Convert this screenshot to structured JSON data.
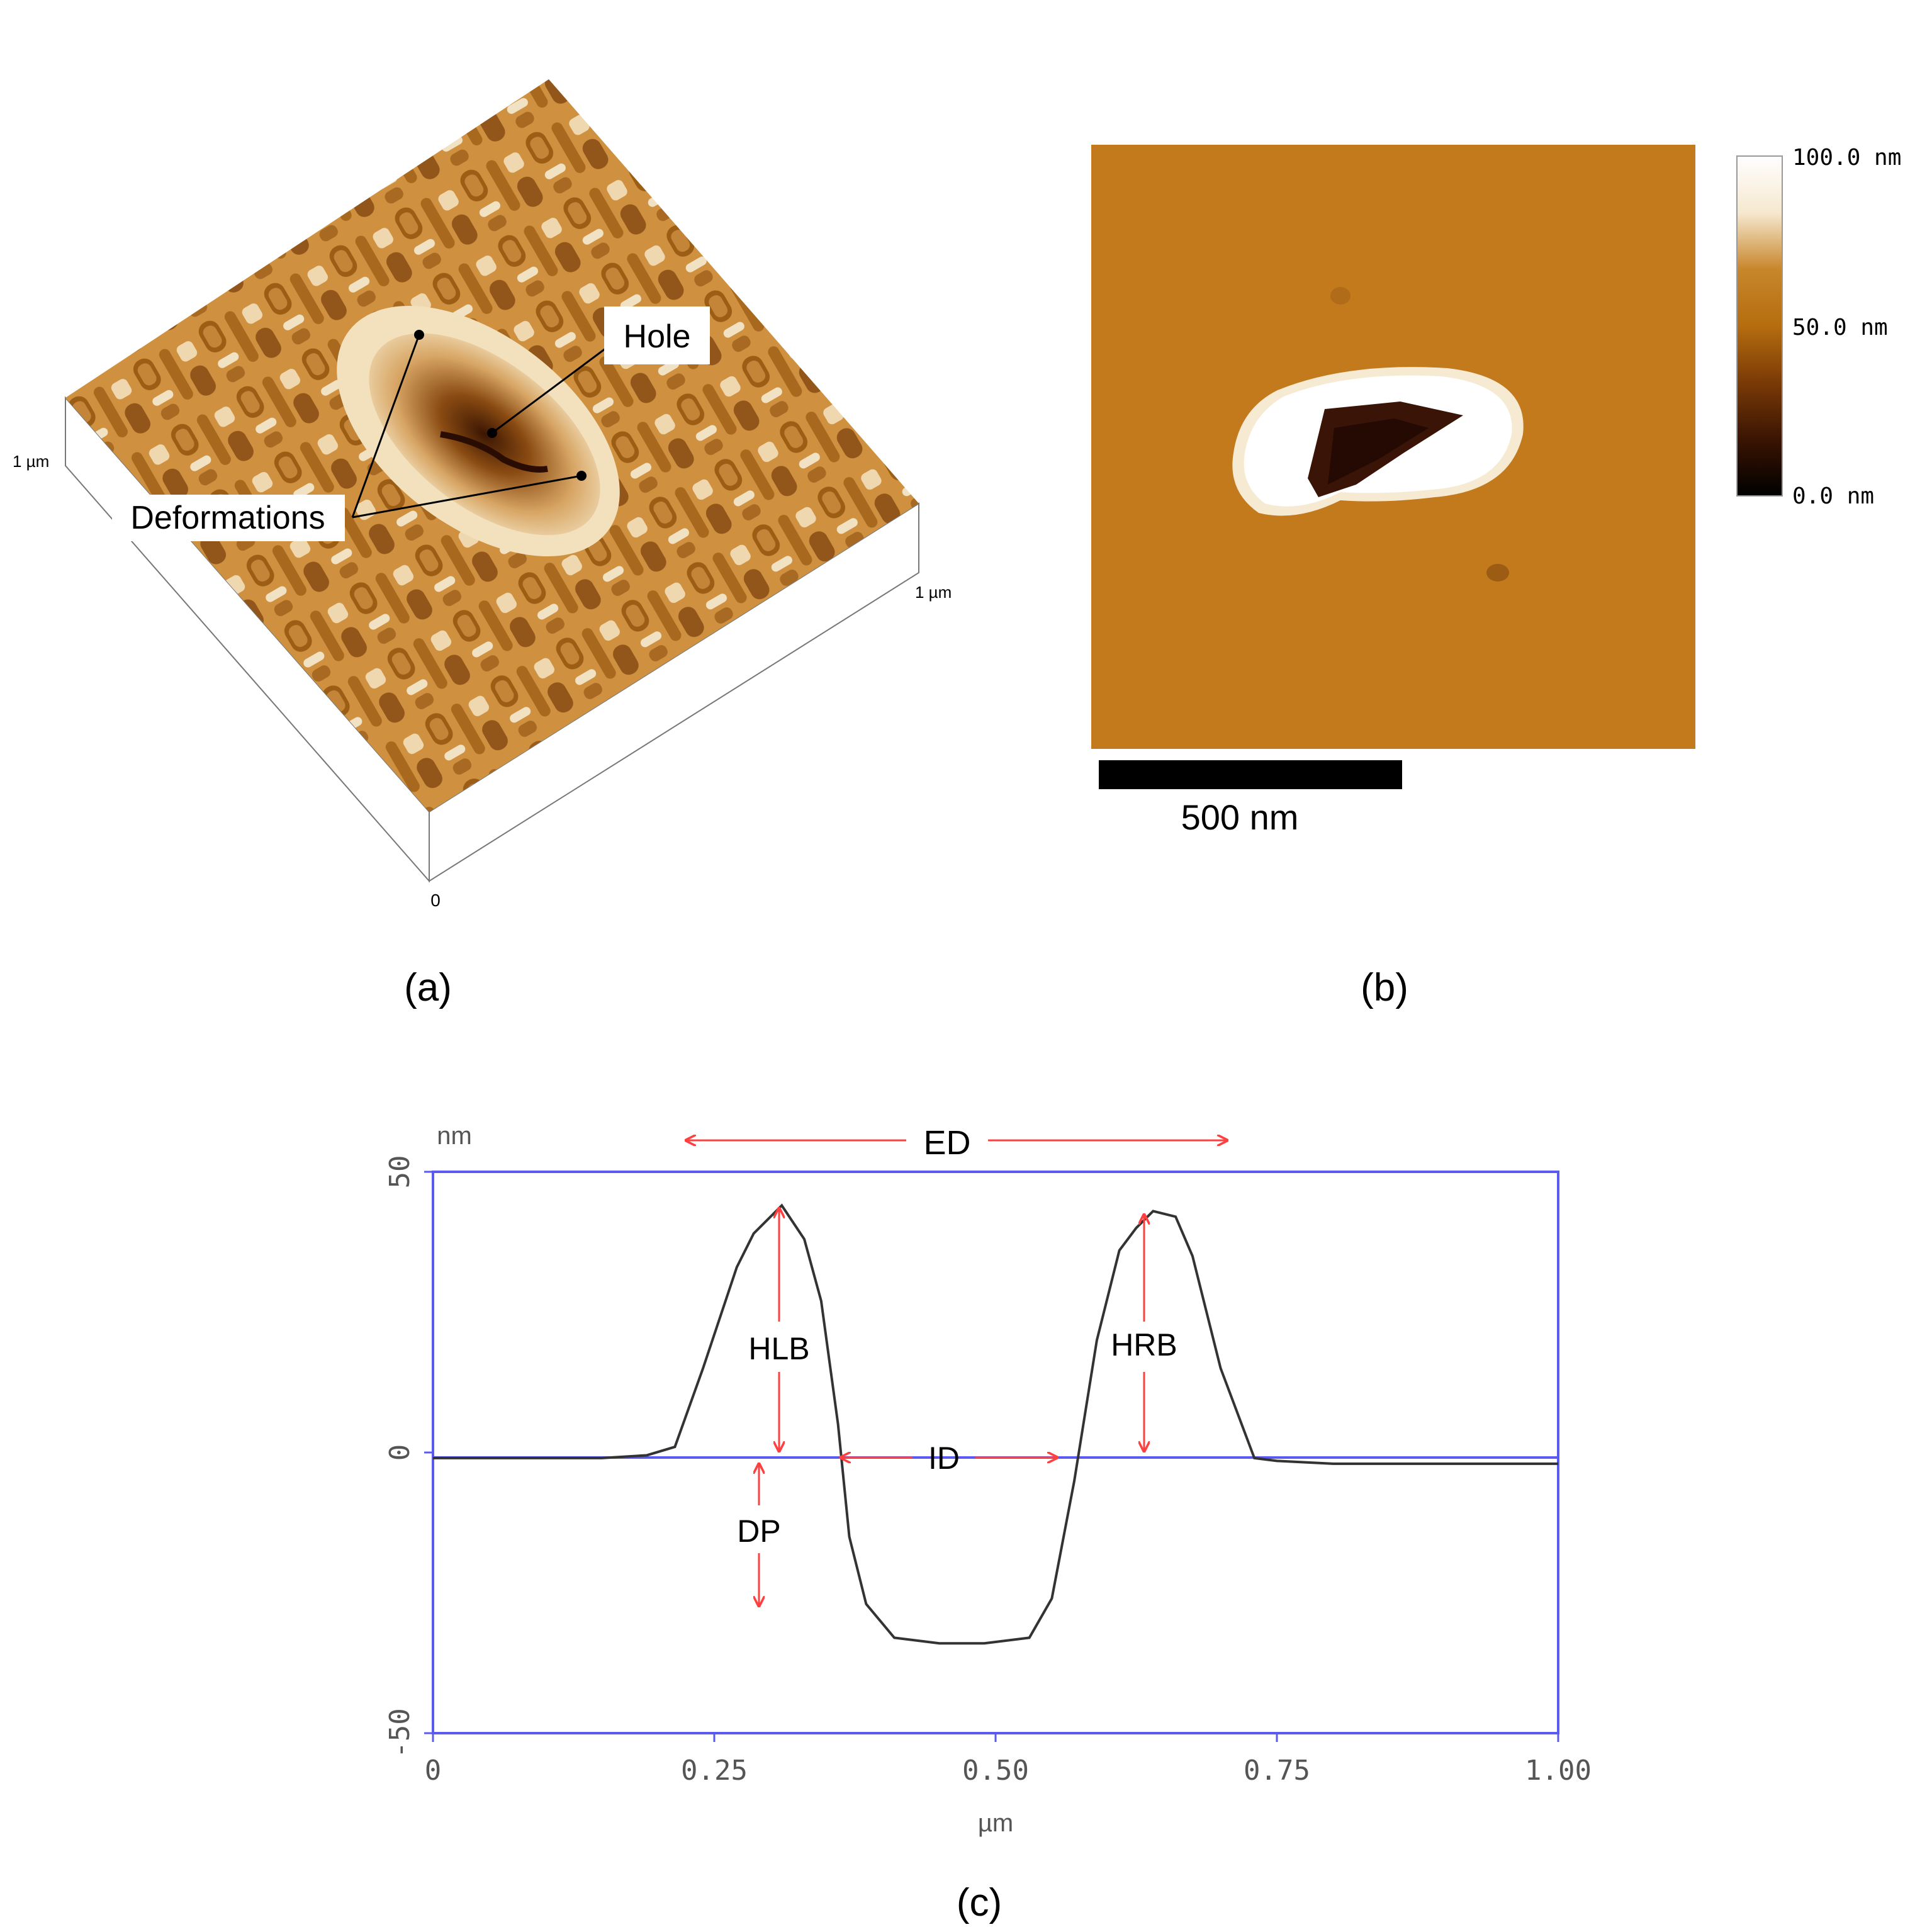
{
  "panel_a": {
    "caption": "(a)",
    "axis_labels": {
      "left_extent": "1 µm",
      "right_extent": "1 µm",
      "origin": "0"
    },
    "annotations": {
      "hole": "Hole",
      "deformations": "Deformations"
    }
  },
  "panel_b": {
    "caption": "(b)",
    "scale_bar_label": "500 nm",
    "colorbar": {
      "max_label": "100.0 nm",
      "mid_label": "50.0 nm",
      "min_label": "0.0 nm",
      "stops": [
        "#ffffff",
        "#f6e8cf",
        "#c8862c",
        "#b56d0f",
        "#7a3a06",
        "#3a1403",
        "#000000"
      ]
    },
    "colors": {
      "background": "#c27a1d",
      "rim": "#ffffff",
      "hole": "#3a1406"
    }
  },
  "panel_c": {
    "caption": "(c)",
    "chart_data": {
      "type": "line",
      "y_unit_label": "nm",
      "xlabel": "µm",
      "xlim": [
        0,
        1.0
      ],
      "ylim": [
        -50,
        50
      ],
      "x_ticks": [
        "0",
        "0.25",
        "0.50",
        "0.75",
        "1.00"
      ],
      "y_ticks": [
        "50",
        "0",
        "-50"
      ],
      "baseline": 0,
      "series": [
        {
          "x": [
            0.0,
            0.05,
            0.1,
            0.15,
            0.19,
            0.215,
            0.24,
            0.27,
            0.285,
            0.31,
            0.33,
            0.345,
            0.36,
            0.37,
            0.385,
            0.41,
            0.45,
            0.49,
            0.53,
            0.55,
            0.57,
            0.59,
            0.61,
            0.625,
            0.64,
            0.66,
            0.675,
            0.7,
            0.73,
            0.75,
            0.8,
            0.9,
            1.0
          ],
          "y": [
            -1,
            -1,
            -1,
            -1,
            -0.5,
            1,
            15,
            33,
            39,
            44,
            38,
            27,
            5,
            -15,
            -27,
            -33,
            -34,
            -34,
            -33,
            -26,
            -5,
            20,
            36,
            40,
            43,
            42,
            35,
            15,
            -1,
            -1.5,
            -2,
            -2,
            -2
          ]
        }
      ],
      "annotations": [
        "ED",
        "HLB",
        "HRB",
        "ID",
        "DP"
      ],
      "colors": {
        "frame": "#5a5af0",
        "line": "#333333",
        "annotation": "#ff4040"
      }
    }
  }
}
